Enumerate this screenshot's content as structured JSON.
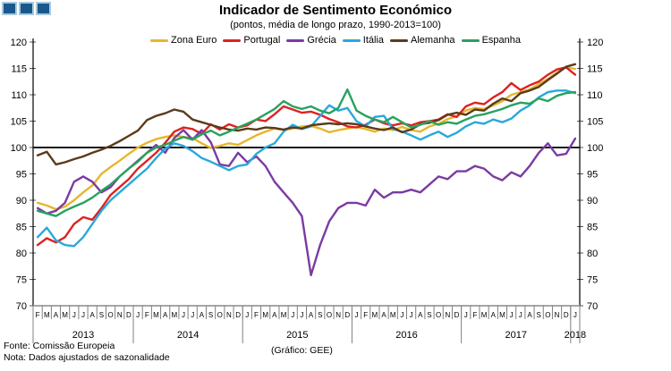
{
  "title": "Indicador de Sentimento Económico",
  "subtitle": "(pontos, média de longo prazo, 1990-2013=100)",
  "footer": {
    "fonte": "Fonte: Comissão Europeia",
    "nota": "Nota: Dados ajustados de sazonalidade",
    "grafico": "(Gráfico: GEE)"
  },
  "logo": {
    "square_count": 3,
    "fill": "#19588C",
    "border": "#A9C9DB"
  },
  "chart_data": {
    "type": "line",
    "title": "Indicador de Sentimento Económico",
    "subtitle": "(pontos, média de longo prazo, 1990-2013=100)",
    "ylabel": "",
    "xlabel": "",
    "ylim": [
      70,
      120
    ],
    "yticks": [
      70,
      75,
      80,
      85,
      90,
      95,
      100,
      105,
      110,
      115,
      120
    ],
    "reference_line": 100,
    "grid": false,
    "legend_position": "top",
    "axis_color": "#000000",
    "x_axis_color": "#A6A6A6",
    "reference_line_color": "#1A1A1A",
    "x_months": [
      "F",
      "M",
      "A",
      "M",
      "J",
      "J",
      "A",
      "S",
      "O",
      "N",
      "D",
      "J",
      "F",
      "M",
      "A",
      "M",
      "J",
      "J",
      "A",
      "S",
      "O",
      "N",
      "D",
      "J",
      "F",
      "M",
      "A",
      "M",
      "J",
      "J",
      "A",
      "S",
      "O",
      "N",
      "D",
      "J",
      "F",
      "M",
      "A",
      "M",
      "J",
      "J",
      "A",
      "S",
      "O",
      "N",
      "D",
      "J",
      "F",
      "M",
      "A",
      "M",
      "J",
      "J",
      "A",
      "S",
      "O",
      "N",
      "D",
      "J"
    ],
    "years": [
      {
        "label": "2013",
        "span": 11
      },
      {
        "label": "2014",
        "span": 12
      },
      {
        "label": "2015",
        "span": 12
      },
      {
        "label": "2016",
        "span": 12
      },
      {
        "label": "2017",
        "span": 12
      },
      {
        "label": "2018",
        "span": 1
      }
    ],
    "series": [
      {
        "name": "Zona Euro",
        "color": "#E8B62B",
        "values": [
          89.5,
          89.0,
          88.3,
          88.8,
          90.0,
          91.5,
          92.8,
          95.0,
          96.3,
          97.5,
          98.8,
          100.0,
          100.9,
          101.6,
          102.0,
          102.3,
          102.0,
          101.8,
          100.8,
          99.9,
          100.3,
          100.8,
          100.5,
          101.4,
          102.3,
          103.0,
          103.6,
          103.3,
          103.6,
          104.0,
          104.1,
          103.6,
          102.9,
          103.3,
          103.6,
          103.9,
          103.5,
          103.0,
          103.6,
          103.3,
          103.9,
          103.3,
          103.0,
          104.0,
          104.5,
          105.4,
          105.9,
          107.0,
          107.5,
          107.3,
          108.0,
          108.8,
          110.0,
          110.5,
          111.0,
          112.0,
          113.0,
          114.2,
          115.2,
          114.9
        ]
      },
      {
        "name": "Portugal",
        "color": "#DD2222",
        "values": [
          81.5,
          82.8,
          82.0,
          83.0,
          85.5,
          86.8,
          86.3,
          88.5,
          91.0,
          92.5,
          94.0,
          96.0,
          97.5,
          99.0,
          100.9,
          103.0,
          103.8,
          103.5,
          102.6,
          104.4,
          103.4,
          104.4,
          103.8,
          104.2,
          105.3,
          105.0,
          106.3,
          107.8,
          107.2,
          106.6,
          106.8,
          106.2,
          105.4,
          104.8,
          104.0,
          103.8,
          104.3,
          105.3,
          104.6,
          104.2,
          104.6,
          104.2,
          104.8,
          105.0,
          105.3,
          106.3,
          105.8,
          107.8,
          108.5,
          108.2,
          109.5,
          110.5,
          112.2,
          110.9,
          111.8,
          112.5,
          113.8,
          114.8,
          115.2,
          113.8
        ]
      },
      {
        "name": "Grécia",
        "color": "#7A3BA3",
        "values": [
          88.5,
          87.5,
          88.0,
          89.5,
          93.5,
          94.5,
          93.5,
          91.5,
          92.5,
          94.5,
          96.0,
          97.5,
          99.0,
          100.5,
          99.0,
          101.8,
          103.3,
          101.5,
          103.3,
          101.0,
          96.8,
          96.5,
          99.0,
          97.2,
          98.3,
          96.5,
          93.5,
          91.5,
          89.5,
          87.0,
          75.8,
          81.5,
          86.0,
          88.5,
          89.5,
          89.5,
          89.0,
          92.0,
          90.5,
          91.5,
          91.5,
          92.0,
          91.5,
          93.0,
          94.5,
          94.0,
          95.5,
          95.5,
          96.5,
          96.0,
          94.5,
          93.8,
          95.3,
          94.5,
          96.5,
          99.0,
          100.8,
          98.5,
          98.8,
          101.7
        ]
      },
      {
        "name": "Itália",
        "color": "#29A8DC",
        "values": [
          83.0,
          84.8,
          82.4,
          81.5,
          81.3,
          83.0,
          85.5,
          88.0,
          90.0,
          91.5,
          93.0,
          94.5,
          96.0,
          98.0,
          99.8,
          100.8,
          100.3,
          99.3,
          98.0,
          97.3,
          96.5,
          95.7,
          96.5,
          96.8,
          98.8,
          100.0,
          100.8,
          103.0,
          104.3,
          103.5,
          104.0,
          106.0,
          108.0,
          107.0,
          107.5,
          105.0,
          104.0,
          105.8,
          106.0,
          103.5,
          103.0,
          102.3,
          101.5,
          102.3,
          103.0,
          102.0,
          102.8,
          104.0,
          104.8,
          104.5,
          105.3,
          104.8,
          105.5,
          107.0,
          108.0,
          109.5,
          110.5,
          110.8,
          110.8,
          110.3
        ]
      },
      {
        "name": "Alemanha",
        "color": "#5C3A1A",
        "values": [
          98.5,
          99.2,
          96.8,
          97.2,
          97.8,
          98.3,
          99.0,
          99.6,
          100.3,
          101.2,
          102.2,
          103.2,
          105.2,
          106.0,
          106.5,
          107.2,
          106.8,
          105.3,
          104.8,
          104.3,
          103.8,
          103.4,
          103.2,
          103.6,
          103.4,
          103.8,
          103.7,
          103.4,
          103.8,
          103.6,
          104.2,
          104.4,
          104.6,
          104.4,
          104.6,
          104.4,
          104.0,
          103.6,
          103.3,
          103.8,
          102.9,
          103.4,
          104.4,
          104.7,
          105.2,
          106.2,
          106.6,
          106.2,
          107.2,
          107.0,
          108.3,
          109.3,
          108.8,
          110.3,
          110.8,
          111.5,
          112.8,
          114.0,
          115.3,
          115.8
        ]
      },
      {
        "name": "Espanha",
        "color": "#27A25F",
        "values": [
          88.0,
          87.5,
          87.0,
          88.0,
          88.8,
          89.5,
          90.5,
          91.8,
          93.0,
          94.5,
          96.0,
          97.3,
          99.0,
          100.0,
          100.5,
          101.3,
          102.0,
          101.5,
          102.5,
          103.2,
          102.3,
          103.0,
          103.8,
          104.5,
          105.3,
          106.3,
          107.3,
          108.8,
          107.8,
          107.3,
          107.8,
          107.0,
          106.5,
          107.5,
          111.0,
          107.0,
          106.0,
          105.3,
          104.8,
          105.8,
          104.8,
          103.8,
          104.3,
          105.0,
          104.3,
          104.8,
          104.5,
          105.3,
          106.0,
          106.3,
          106.8,
          107.3,
          108.0,
          108.5,
          108.3,
          109.3,
          108.8,
          109.8,
          110.3,
          110.5
        ]
      }
    ]
  }
}
